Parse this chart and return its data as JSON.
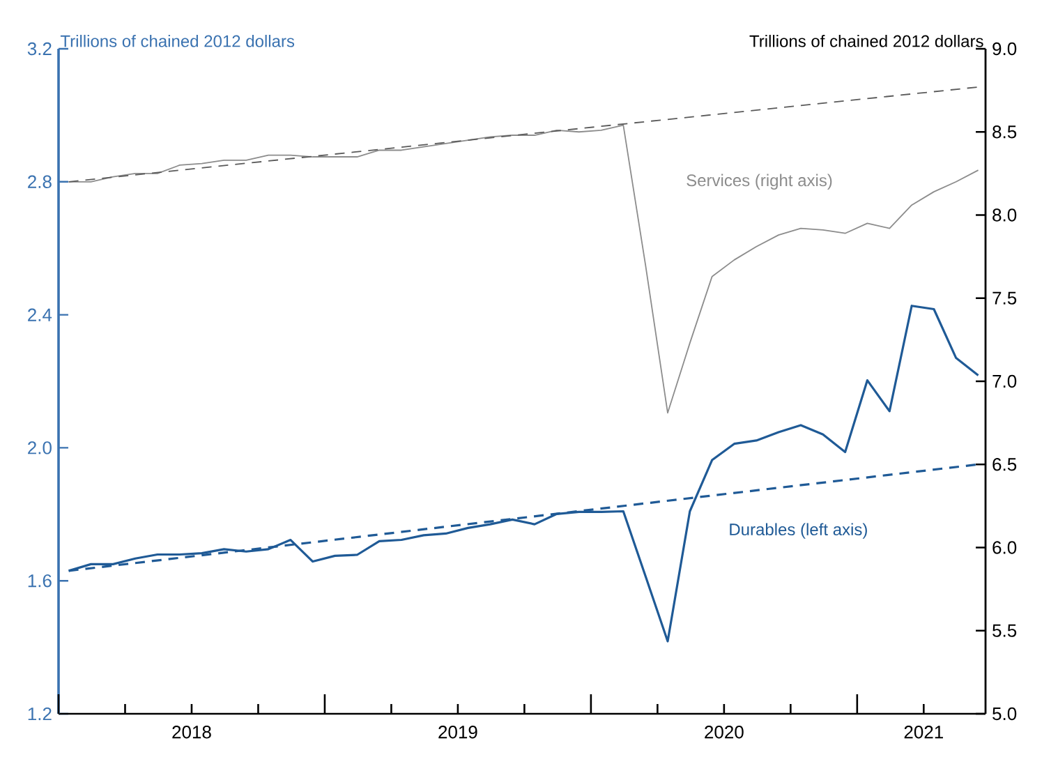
{
  "chart_data": {
    "type": "line",
    "line_style": "solid",
    "ylabel": "Trillions of chained 2012 dollars",
    "y2label": "Trillions of chained 2012 dollars",
    "x": [
      "2018-01-15",
      "2018-02-15",
      "2018-03-15",
      "2018-04-15",
      "2018-05-15",
      "2018-06-15",
      "2018-07-15",
      "2018-08-15",
      "2018-09-15",
      "2018-10-15",
      "2018-11-15",
      "2018-12-15",
      "2019-01-15",
      "2019-02-15",
      "2019-03-15",
      "2019-04-15",
      "2019-05-15",
      "2019-06-15",
      "2019-07-15",
      "2019-08-15",
      "2019-09-15",
      "2019-10-15",
      "2019-11-15",
      "2019-12-15",
      "2020-01-15",
      "2020-02-15",
      "2020-03-15",
      "2020-04-15",
      "2020-05-15",
      "2020-06-15",
      "2020-07-15",
      "2020-08-15",
      "2020-09-15",
      "2020-10-15",
      "2020-11-15",
      "2020-12-15",
      "2021-01-15",
      "2021-02-15",
      "2021-03-15",
      "2021-04-15",
      "2021-05-15",
      "2021-06-15"
    ],
    "xlim": [
      "2018-01-01",
      "2021-06-25"
    ],
    "xticks": [
      {
        "value": "2018-01-01",
        "label": null
      },
      {
        "value": "2018-04-01",
        "label": null
      },
      {
        "value": "2018-07-01",
        "label": "2018"
      },
      {
        "value": "2018-10-01",
        "label": null
      },
      {
        "value": "2019-01-01",
        "label": null
      },
      {
        "value": "2019-04-01",
        "label": null
      },
      {
        "value": "2019-07-01",
        "label": "2019"
      },
      {
        "value": "2019-10-01",
        "label": null
      },
      {
        "value": "2020-01-01",
        "label": null
      },
      {
        "value": "2020-04-01",
        "label": null
      },
      {
        "value": "2020-07-01",
        "label": "2020"
      },
      {
        "value": "2020-10-01",
        "label": null
      },
      {
        "value": "2021-01-01",
        "label": null
      },
      {
        "value": "2021-04-01",
        "label": "2021"
      }
    ],
    "ylim": [
      1.2,
      3.2
    ],
    "yticks": [
      1.2,
      1.6,
      {
        "value": 2,
        "label": "2.0"
      },
      2.4,
      2.8,
      3.2
    ],
    "y2lim": [
      5,
      9
    ],
    "y2ticks": [
      {
        "value": 5,
        "label": "5.0"
      },
      5.5,
      {
        "value": 6,
        "label": "6.0"
      },
      6.5,
      {
        "value": 7,
        "label": "7.0"
      },
      7.5,
      {
        "value": 8,
        "label": "8.0"
      },
      8.5,
      {
        "value": 9,
        "label": "9.0"
      }
    ],
    "series": [
      {
        "name": "Durables (left axis)",
        "color": "#1f5a96",
        "values": [
          1.63,
          1.65,
          1.65,
          1.667,
          1.679,
          1.679,
          1.683,
          1.695,
          1.688,
          1.695,
          1.723,
          1.658,
          1.675,
          1.678,
          1.719,
          1.723,
          1.737,
          1.742,
          1.759,
          1.77,
          1.784,
          1.77,
          1.801,
          1.807,
          1.807,
          1.809,
          1.614,
          1.418,
          1.809,
          1.963,
          2.012,
          2.022,
          2.047,
          2.068,
          2.04,
          1.987,
          2.203,
          2.11,
          2.427,
          2.417,
          2.27,
          2.218
        ]
      },
      {
        "color": "#1f5a96",
        "x": [
          "2018-01-15",
          "2021-06-15"
        ],
        "values": [
          1.63,
          1.95
        ],
        "line_style": "dashed"
      },
      {
        "name": "Services (right axis)",
        "color": "#8c8c8c",
        "axis": "y2",
        "values": [
          8.2,
          8.2,
          8.23,
          8.25,
          8.25,
          8.3,
          8.31,
          8.33,
          8.33,
          8.36,
          8.36,
          8.35,
          8.35,
          8.35,
          8.39,
          8.39,
          8.41,
          8.43,
          8.45,
          8.47,
          8.48,
          8.48,
          8.51,
          8.5,
          8.51,
          8.54,
          7.7,
          6.81,
          7.23,
          7.63,
          7.73,
          7.81,
          7.88,
          7.92,
          7.91,
          7.89,
          7.95,
          7.92,
          8.06,
          8.14,
          8.2,
          8.27
        ]
      },
      {
        "color": "#5a5a5a",
        "axis": "y2",
        "x": [
          "2018-01-15",
          "2021-06-15"
        ],
        "values": [
          8.2,
          8.77
        ],
        "line_style": "dashed"
      }
    ]
  }
}
